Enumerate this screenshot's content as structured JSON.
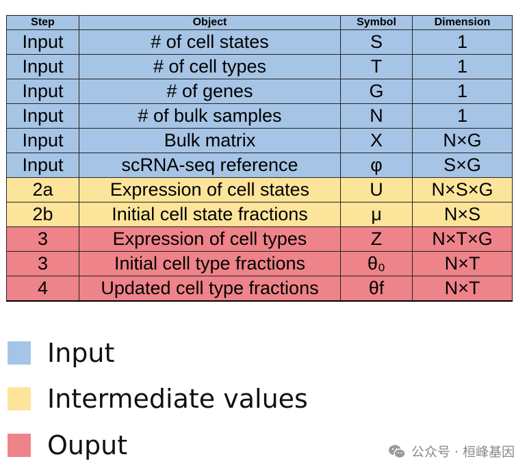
{
  "colors": {
    "input": "#a6c4e5",
    "intermediate": "#fce49a",
    "output": "#ee8389"
  },
  "table": {
    "headers": {
      "step": "Step",
      "object": "Object",
      "symbol": "Symbol",
      "dimension": "Dimension"
    },
    "rows": [
      {
        "step": "Input",
        "object": "# of cell states",
        "symbol": "S",
        "dimension": "1",
        "category": "input"
      },
      {
        "step": "Input",
        "object": "# of cell types",
        "symbol": "T",
        "dimension": "1",
        "category": "input"
      },
      {
        "step": "Input",
        "object": "# of genes",
        "symbol": "G",
        "dimension": "1",
        "category": "input"
      },
      {
        "step": "Input",
        "object": "# of bulk samples",
        "symbol": "N",
        "dimension": "1",
        "category": "input"
      },
      {
        "step": "Input",
        "object": "Bulk matrix",
        "symbol": "X",
        "dimension": "N×G",
        "category": "input"
      },
      {
        "step": "Input",
        "object": "scRNA-seq reference",
        "symbol": "φ",
        "dimension": "S×G",
        "category": "input"
      },
      {
        "step": "2a",
        "object": "Expression of cell states",
        "symbol": "U",
        "dimension": "N×S×G",
        "category": "intermediate"
      },
      {
        "step": "2b",
        "object": "Initial cell state fractions",
        "symbol": "μ",
        "dimension": "N×S",
        "category": "intermediate"
      },
      {
        "step": "3",
        "object": "Expression of cell types",
        "symbol": "Z",
        "dimension": "N×T×G",
        "category": "output"
      },
      {
        "step": "3",
        "object": "Initial cell type fractions",
        "symbol": "θ₀",
        "dimension": "N×T",
        "category": "output"
      },
      {
        "step": "4",
        "object": "Updated cell type fractions",
        "symbol": "θf",
        "dimension": "N×T",
        "category": "output"
      }
    ]
  },
  "legend": [
    {
      "label": "Input",
      "category": "input"
    },
    {
      "label": "Intermediate values",
      "category": "intermediate"
    },
    {
      "label": "Ouput",
      "category": "output"
    }
  ],
  "watermark": {
    "text": "公众号 · 桓峰基因",
    "icon": "wechat-icon"
  }
}
